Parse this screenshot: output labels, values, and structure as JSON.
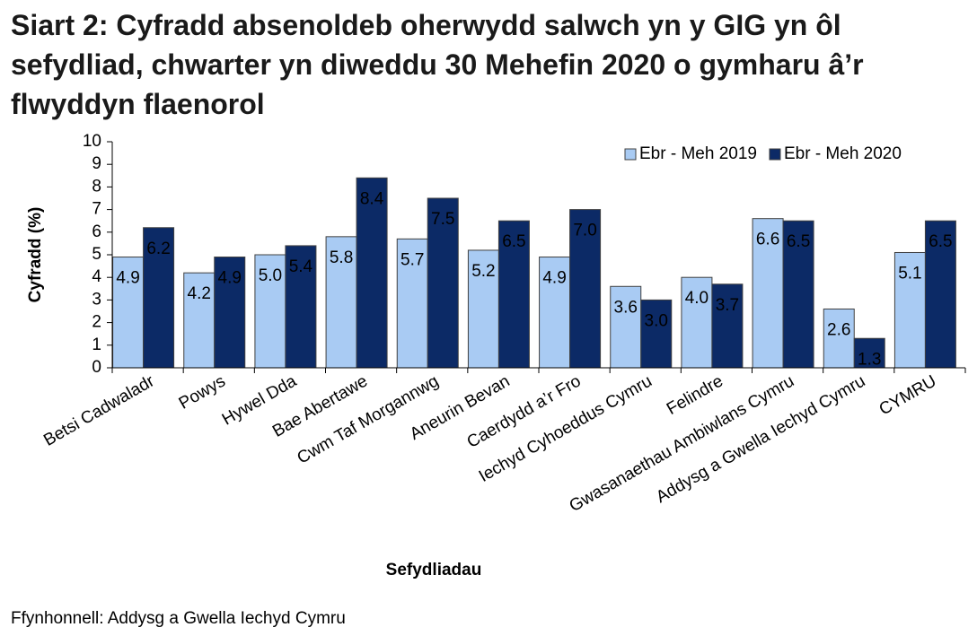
{
  "chart_data": {
    "type": "bar",
    "title": "Siart 2: Cyfradd absenoldeb oherwydd salwch yn y GIG yn ôl sefydliad, chwarter yn diweddu 30 Mehefin 2020 o gymharu â’r flwyddyn flaenorol",
    "x_label": "Sefydliadau",
    "y_label": "Cyfradd (%)",
    "source": "Ffynhonnell: Addysg a Gwella Iechyd Cymru",
    "categories": [
      "Betsi Cadwaladr",
      "Powys",
      "Hywel Dda",
      "Bae Abertawe",
      "Cwm Taf Morgannwg",
      "Aneurin Bevan",
      "Caerdydd a’r Fro",
      "Iechyd Cyhoeddus Cymru",
      "Felindre",
      "Gwasanaethau Ambiwlans Cymru",
      "Addysg a Gwella Iechyd Cymru",
      "CYMRU"
    ],
    "series": [
      {
        "name": "Ebr - Meh 2019",
        "color": "#a9cbf3",
        "values": [
          4.9,
          4.2,
          5.0,
          5.8,
          5.7,
          5.2,
          4.9,
          3.6,
          4.0,
          6.6,
          2.6,
          5.1
        ],
        "value_labels": [
          "4.9",
          "4.2",
          "5.0",
          "5.8",
          "5.7",
          "5.2",
          "4.9",
          "3.6",
          "4.0",
          "6.6",
          "2.6",
          "5.1"
        ]
      },
      {
        "name": "Ebr - Meh 2020",
        "color": "#0c2a66",
        "values": [
          6.2,
          4.9,
          5.4,
          8.4,
          7.5,
          6.5,
          7.0,
          3.0,
          3.7,
          6.5,
          1.3,
          6.5
        ],
        "value_labels": [
          "6.2",
          "4.9",
          "5.4",
          "8.4",
          "7.5",
          "6.5",
          "7.0",
          "3.0",
          "3.7",
          "6.5",
          "1.3",
          "6.5"
        ]
      }
    ],
    "ylim": [
      0,
      10
    ],
    "yticks": [
      0,
      1,
      2,
      3,
      4,
      5,
      6,
      7,
      8,
      9,
      10
    ],
    "grid": false,
    "legend": "top-right"
  }
}
